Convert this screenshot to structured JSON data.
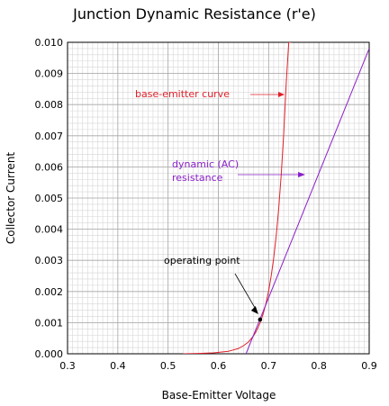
{
  "chart_data": {
    "type": "line",
    "title": "Junction Dynamic Resistance (r'e)",
    "xlabel": "Base-Emitter Voltage",
    "ylabel": "Collector Current",
    "xlim": [
      0.3,
      0.9
    ],
    "ylim": [
      0,
      0.01
    ],
    "x_ticks": [
      "0.3",
      "0.4",
      "0.5",
      "0.6",
      "0.7",
      "0.8",
      "0.9"
    ],
    "y_ticks": [
      "0.000",
      "0.001",
      "0.002",
      "0.003",
      "0.004",
      "0.005",
      "0.006",
      "0.007",
      "0.008",
      "0.009",
      "0.010"
    ],
    "grid": true,
    "series": [
      {
        "name": "base-emitter curve",
        "color": "#e0202a",
        "x": [
          0.53,
          0.56,
          0.59,
          0.62,
          0.64,
          0.65,
          0.66,
          0.67,
          0.675,
          0.68,
          0.685,
          0.69,
          0.695,
          0.7,
          0.705,
          0.71,
          0.715,
          0.72,
          0.725,
          0.73,
          0.735,
          0.74,
          0.745
        ],
        "y": [
          0.0,
          1e-05,
          3e-05,
          8e-05,
          0.00017,
          0.00026,
          0.00038,
          0.00058,
          0.00071,
          0.00088,
          0.00108,
          0.00133,
          0.00164,
          0.00202,
          0.00249,
          0.00307,
          0.00378,
          0.00466,
          0.00574,
          0.00707,
          0.0087,
          0.01,
          0.01
        ]
      },
      {
        "name": "dynamic (AC) resistance",
        "color": "#8a1fc9",
        "x": [
          0.655,
          0.9
        ],
        "y": [
          0.0,
          0.0098
        ]
      }
    ],
    "operating_point": {
      "x": 0.683,
      "y": 0.0011
    },
    "annotations": [
      {
        "text": "base-emitter curve",
        "color": "#e0202a"
      },
      {
        "text": "dynamic (AC)",
        "text2": "resistance",
        "color": "#8a1fc9"
      },
      {
        "text": "operating point",
        "color": "#000000"
      }
    ]
  }
}
